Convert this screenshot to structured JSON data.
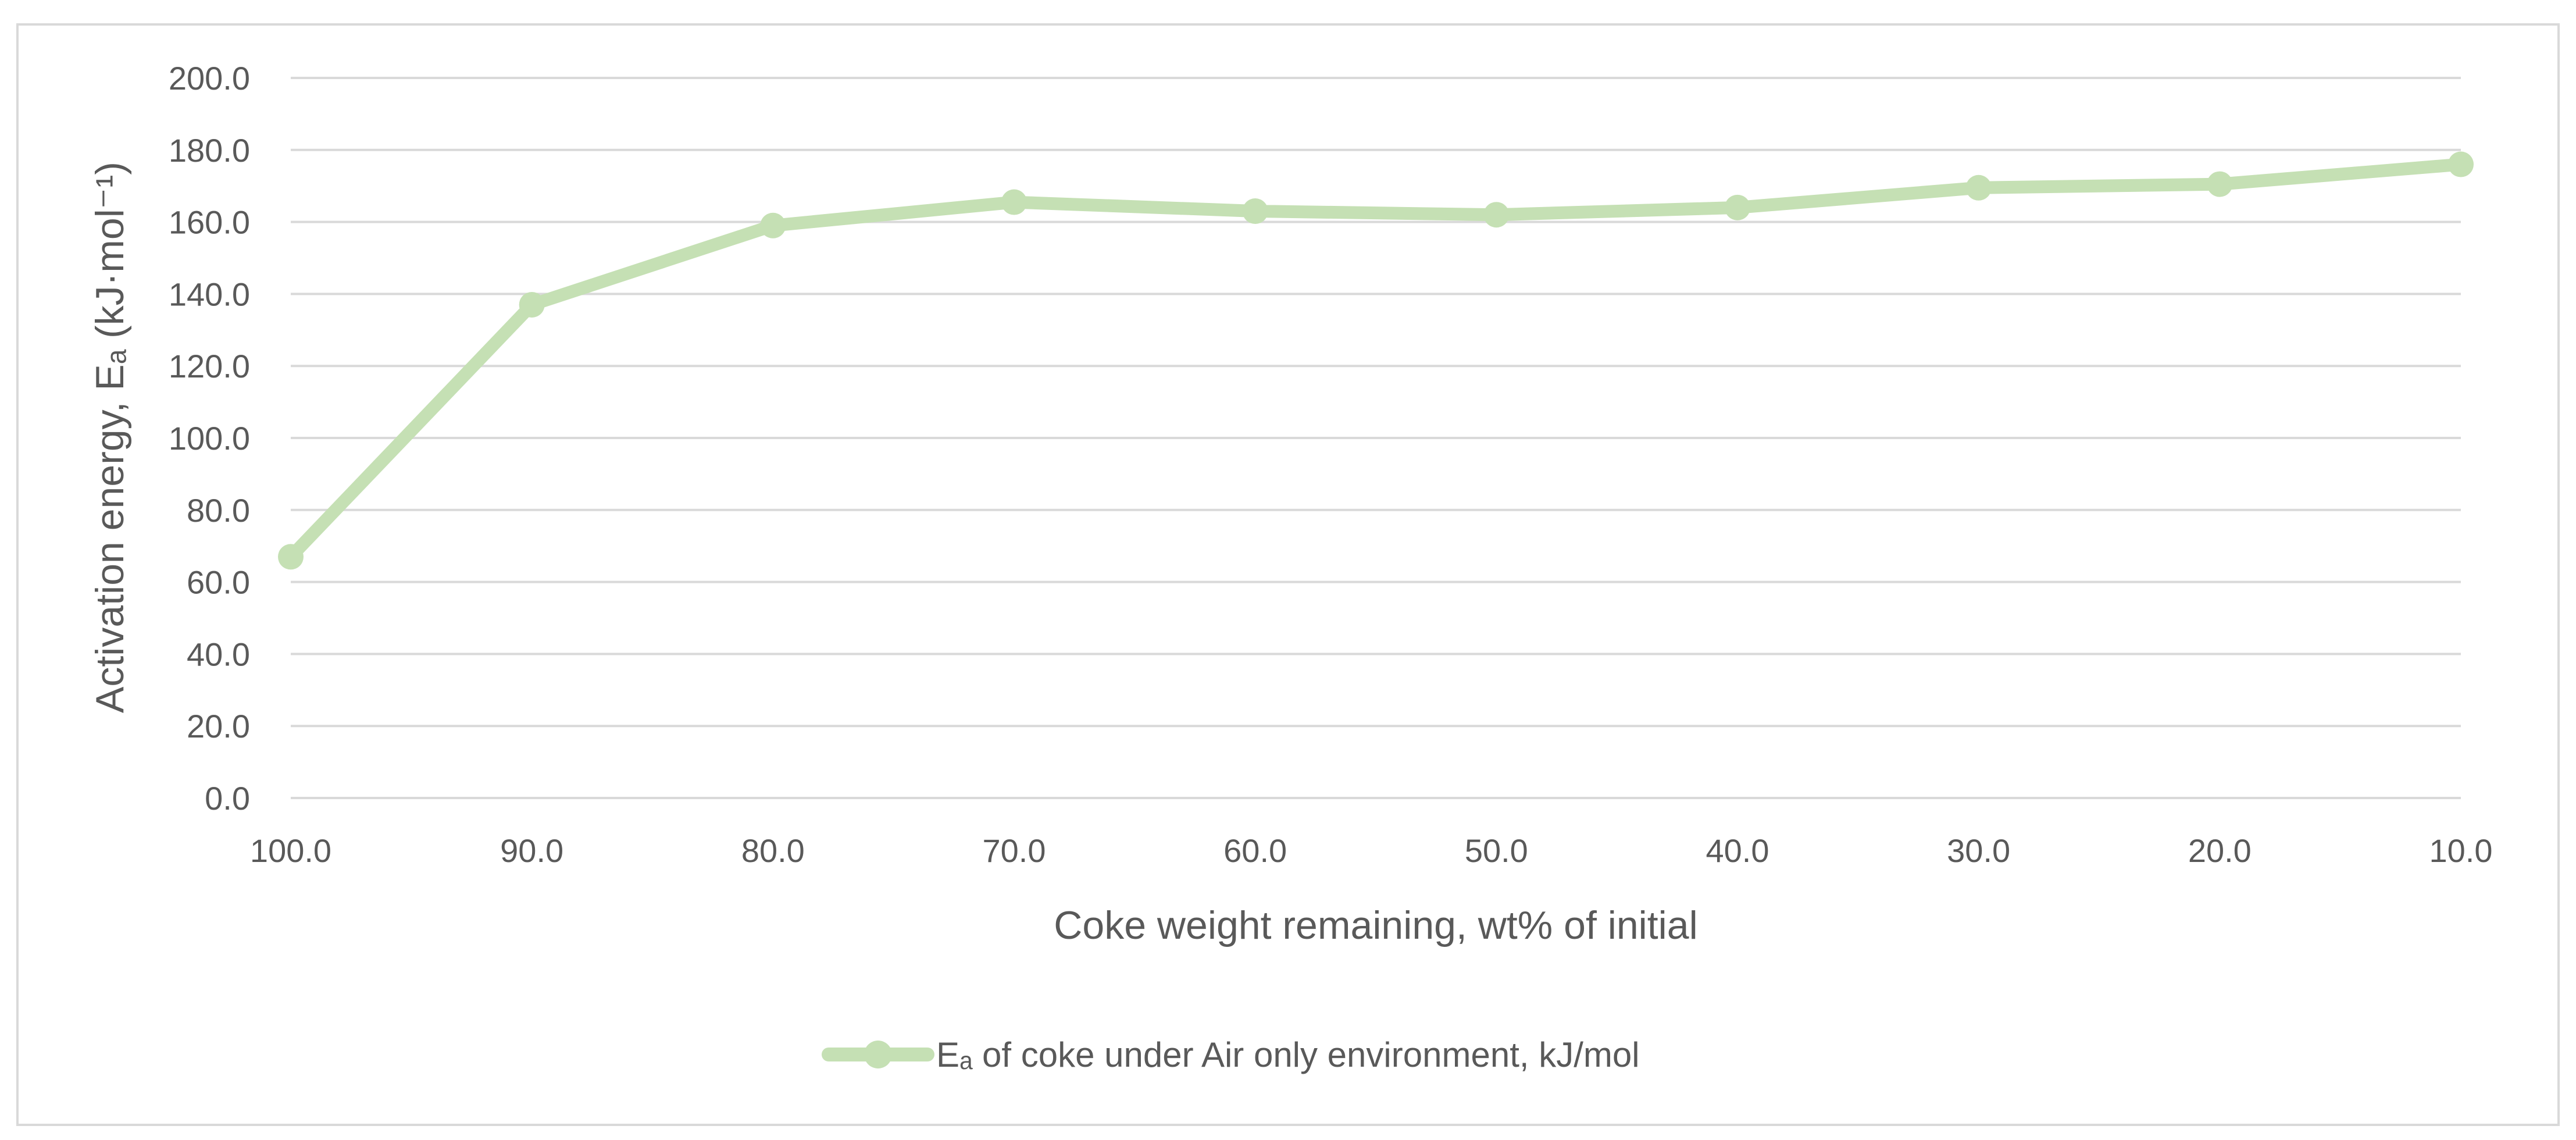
{
  "chart_data": {
    "type": "line",
    "title": "",
    "xlabel": "Coke weight remaining, wt% of initial",
    "ylabel": "Activation energy, Eₐ (kJ·mol⁻¹)",
    "x": [
      100.0,
      90.0,
      80.0,
      70.0,
      60.0,
      50.0,
      40.0,
      30.0,
      20.0,
      10.0
    ],
    "x_tick_labels": [
      "100.0",
      "90.0",
      "80.0",
      "70.0",
      "60.0",
      "50.0",
      "40.0",
      "30.0",
      "20.0",
      "10.0"
    ],
    "x_reversed": true,
    "ylim": [
      0,
      200
    ],
    "y_ticks": [
      0,
      20,
      40,
      60,
      80,
      100,
      120,
      140,
      160,
      180,
      200
    ],
    "y_tick_labels": [
      "0.0",
      "20.0",
      "40.0",
      "60.0",
      "80.0",
      "100.0",
      "120.0",
      "140.0",
      "160.0",
      "180.0",
      "200.0"
    ],
    "grid": true,
    "legend_position": "bottom",
    "series": [
      {
        "name": "Eₐ of coke under Air only environment,  kJ/mol",
        "values": [
          67,
          137,
          159,
          165.5,
          163,
          162,
          164,
          169.5,
          170.5,
          176
        ],
        "color": "#C5E0B4"
      }
    ]
  }
}
